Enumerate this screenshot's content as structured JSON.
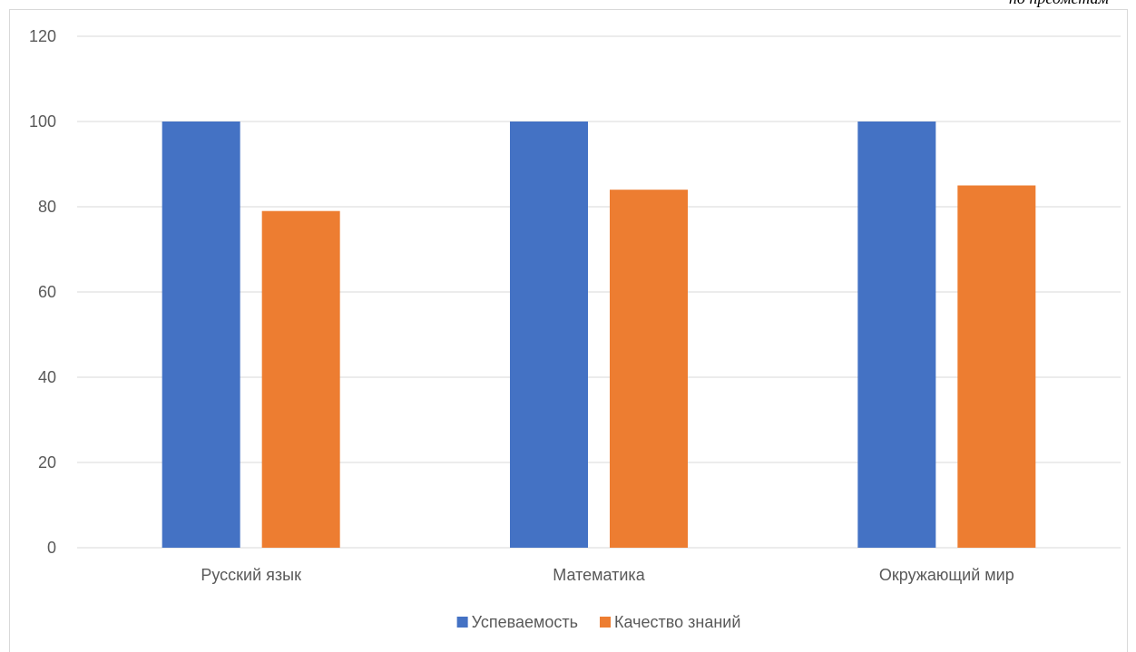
{
  "chart_data": {
    "type": "bar",
    "annotation": "по предметам",
    "categories": [
      "Русский язык",
      "Математика",
      "Окружающий мир"
    ],
    "series": [
      {
        "name": "Успеваемость",
        "color": "#4472c4",
        "values": [
          100,
          100,
          100
        ]
      },
      {
        "name": "Качество знаний",
        "color": "#ed7d31",
        "values": [
          79,
          84,
          85
        ]
      }
    ],
    "ylim": [
      0,
      120
    ],
    "yticks": [
      0,
      20,
      40,
      60,
      80,
      100,
      120
    ],
    "grid": true,
    "legend": "bottom"
  }
}
